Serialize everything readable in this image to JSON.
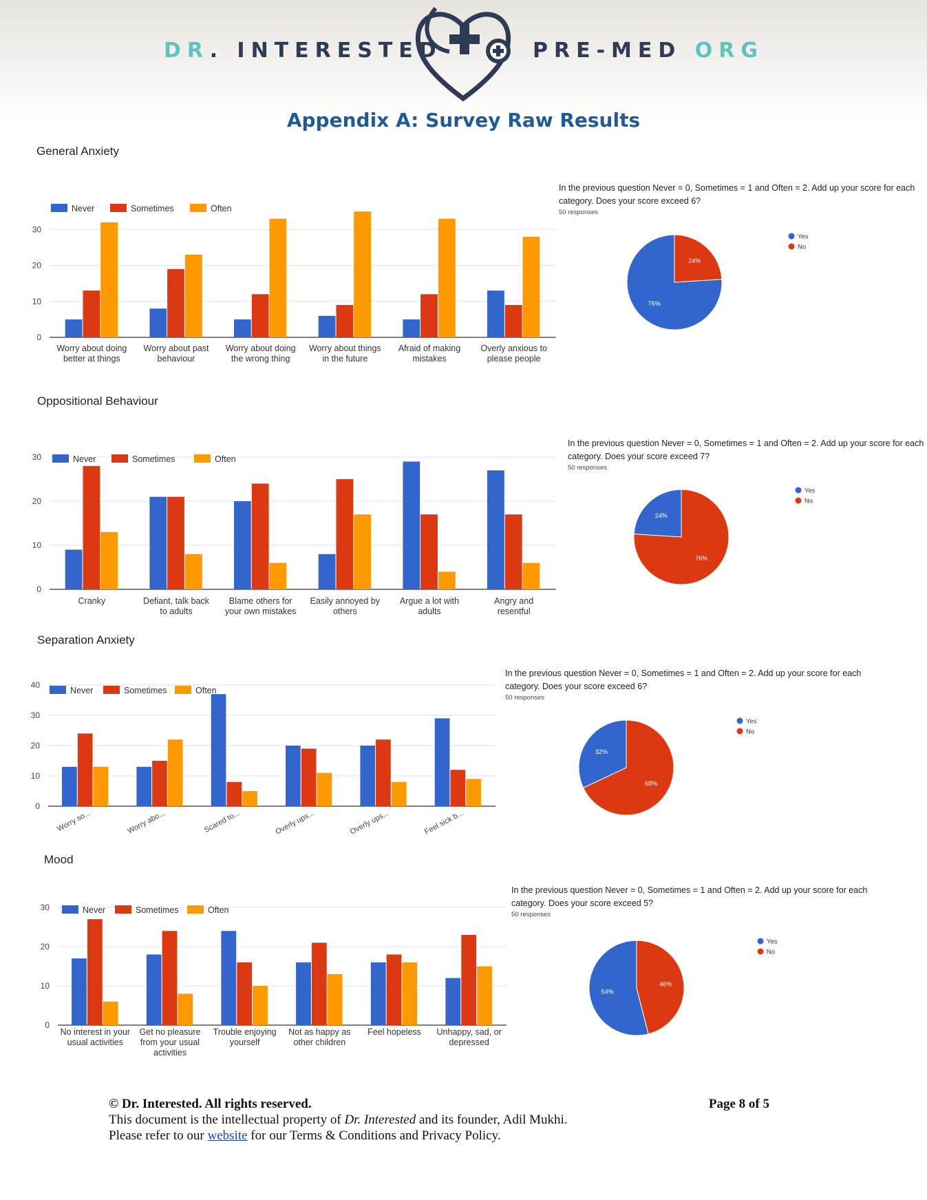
{
  "header": {
    "brand_left_a": "DR",
    "brand_left_b": ". INTERESTED",
    "brand_right_a": "PRE-MED",
    "brand_right_b": "ORG",
    "title": "Appendix A: Survey Raw Results"
  },
  "colors": {
    "never": "#3366cc",
    "sometimes": "#dc3912",
    "often": "#ff9900",
    "yes": "#3366cc",
    "no": "#dc3912",
    "brand_navy": "#2e3b55",
    "brand_teal": "#5fc4bf",
    "title_blue": "#1f5c96"
  },
  "legend": {
    "never": "Never",
    "sometimes": "Sometimes",
    "often": "Often",
    "yes": "Yes",
    "no": "No"
  },
  "sections": [
    {
      "title": "General Anxiety",
      "pie": {
        "question": "In the previous question Never = 0, Sometimes = 1 and Often = 2. Add up your score for each category. Does your score exceed 6?",
        "responses": "50 responses"
      }
    },
    {
      "title": "Oppositional Behaviour",
      "pie": {
        "question": "In the previous question Never = 0, Sometimes = 1 and Often = 2. Add up your score for each category. Does your score exceed 7?",
        "responses": "50 responses"
      }
    },
    {
      "title": "Separation Anxiety",
      "pie": {
        "question": "In the previous question Never = 0, Sometimes = 1 and Often = 2. Add up your score for each category. Does your score exceed 6?",
        "responses": "50 responses"
      }
    },
    {
      "title": "Mood",
      "pie": {
        "question": "In the previous question Never = 0, Sometimes = 1 and Often = 2. Add up your score for each category. Does your score exceed 5?",
        "responses": "50 responses"
      }
    }
  ],
  "chart_data": [
    {
      "type": "bar",
      "title": "General Anxiety",
      "categories": [
        [
          "Worry about doing",
          "better at things"
        ],
        [
          "Worry about past",
          "behaviour"
        ],
        [
          "Worry about doing",
          "the wrong thing"
        ],
        [
          "Worry about things",
          "in the future"
        ],
        [
          "Afraid of making",
          "mistakes"
        ],
        [
          "Overly anxious to",
          "please people"
        ]
      ],
      "series": [
        {
          "name": "Never",
          "values": [
            5,
            8,
            5,
            6,
            5,
            13
          ]
        },
        {
          "name": "Sometimes",
          "values": [
            13,
            19,
            12,
            9,
            12,
            9
          ]
        },
        {
          "name": "Often",
          "values": [
            32,
            23,
            33,
            35,
            33,
            28
          ]
        }
      ],
      "yticks": [
        0,
        10,
        20,
        30
      ],
      "ylim": [
        0,
        36
      ],
      "legend": "top-left",
      "grid": true
    },
    {
      "type": "pie",
      "title": "",
      "labels": [
        "Yes",
        "No"
      ],
      "values": [
        76,
        24
      ],
      "legend": "right"
    },
    {
      "type": "bar",
      "title": "Oppositional Behaviour",
      "categories": [
        [
          "Cranky"
        ],
        [
          "Defiant, talk back",
          "to adults"
        ],
        [
          "Blame others for",
          "your own mistakes"
        ],
        [
          "Easily annoyed by",
          "others"
        ],
        [
          "Argue a lot with",
          "adults"
        ],
        [
          "Angry and",
          "resentful"
        ]
      ],
      "series": [
        {
          "name": "Never",
          "values": [
            9,
            21,
            20,
            8,
            29,
            27
          ]
        },
        {
          "name": "Sometimes",
          "values": [
            28,
            21,
            24,
            25,
            17,
            17
          ]
        },
        {
          "name": "Often",
          "values": [
            13,
            8,
            6,
            17,
            4,
            6
          ]
        }
      ],
      "yticks": [
        0,
        10,
        20,
        30
      ],
      "ylim": [
        0,
        30
      ],
      "legend": "top-left",
      "grid": true
    },
    {
      "type": "pie",
      "title": "",
      "labels": [
        "Yes",
        "No"
      ],
      "values": [
        24,
        76
      ],
      "legend": "right"
    },
    {
      "type": "bar",
      "title": "Separation Anxiety",
      "categories": [
        [
          "Worry so..."
        ],
        [
          "Worry abo..."
        ],
        [
          "Scared to..."
        ],
        [
          "Overly ups..."
        ],
        [
          "Overly ups..."
        ],
        [
          "Feel sick b..."
        ]
      ],
      "series": [
        {
          "name": "Never",
          "values": [
            13,
            13,
            37,
            20,
            20,
            29
          ]
        },
        {
          "name": "Sometimes",
          "values": [
            24,
            15,
            8,
            19,
            22,
            12
          ]
        },
        {
          "name": "Often",
          "values": [
            13,
            22,
            5,
            11,
            8,
            9
          ]
        }
      ],
      "yticks": [
        0,
        10,
        20,
        30,
        40
      ],
      "ylim": [
        0,
        40
      ],
      "legend": "top-left",
      "grid": true
    },
    {
      "type": "pie",
      "title": "",
      "labels": [
        "Yes",
        "No"
      ],
      "values": [
        32,
        68
      ],
      "legend": "right"
    },
    {
      "type": "bar",
      "title": "Mood",
      "categories": [
        [
          "No interest in your",
          "usual activities"
        ],
        [
          "Get no pleasure",
          "from your usual",
          "activities"
        ],
        [
          "Trouble enjoying",
          "yourself"
        ],
        [
          "Not as happy as",
          "other children"
        ],
        [
          "Feel hopeless"
        ],
        [
          "Unhappy, sad, or",
          "depressed"
        ]
      ],
      "series": [
        {
          "name": "Never",
          "values": [
            17,
            18,
            24,
            16,
            16,
            12
          ]
        },
        {
          "name": "Sometimes",
          "values": [
            27,
            24,
            16,
            21,
            18,
            23
          ]
        },
        {
          "name": "Often",
          "values": [
            6,
            8,
            10,
            13,
            16,
            15
          ]
        }
      ],
      "yticks": [
        0,
        10,
        20,
        30
      ],
      "ylim": [
        0,
        30
      ],
      "legend": "top-left",
      "grid": true
    },
    {
      "type": "pie",
      "title": "",
      "labels": [
        "Yes",
        "No"
      ],
      "values": [
        54,
        46
      ],
      "legend": "right"
    }
  ],
  "footer": {
    "copyright": "© Dr. Interested. All rights reserved.",
    "page": "Page 8 of 5",
    "line2_a": "This document is the intellectual property of ",
    "line2_italic": "Dr. Interested",
    "line2_b": " and its founder, Adil Mukhi.",
    "line3_a": "Please refer to our ",
    "line3_link": "website",
    "line3_b": " for our Terms & Conditions and Privacy Policy."
  }
}
